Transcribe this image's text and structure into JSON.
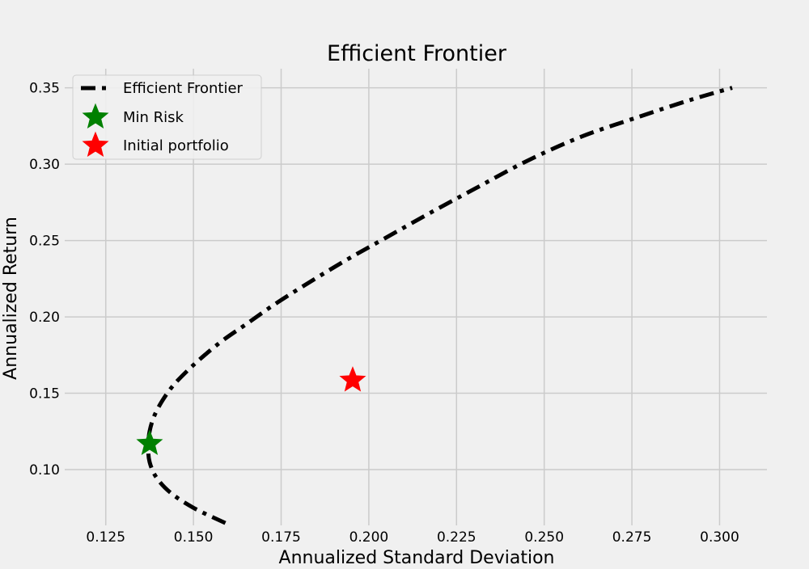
{
  "chart_data": {
    "type": "line",
    "title": "Efficient Frontier",
    "xlabel": "Annualized Standard Deviation",
    "ylabel": "Annualized Return",
    "xlim": [
      0.1133,
      0.3135
    ],
    "ylim": [
      0.0635,
      0.3625
    ],
    "xticks": [
      "0.125",
      "0.150",
      "0.175",
      "0.200",
      "0.225",
      "0.250",
      "0.275",
      "0.300"
    ],
    "yticks": [
      "0.10",
      "0.15",
      "0.20",
      "0.25",
      "0.30",
      "0.35"
    ],
    "grid": true,
    "legend": {
      "placement": "top-left",
      "entries": [
        "Efficient Frontier",
        "Min Risk",
        "Initial portfolio"
      ]
    },
    "series": [
      {
        "name": "Efficient Frontier",
        "kind": "line",
        "style": "dash-dot",
        "color": "#000000",
        "points": [
          {
            "x": 0.1591,
            "y": 0.065
          },
          {
            "x": 0.15,
            "y": 0.075
          },
          {
            "x": 0.1434,
            "y": 0.085
          },
          {
            "x": 0.1394,
            "y": 0.095
          },
          {
            "x": 0.1375,
            "y": 0.105
          },
          {
            "x": 0.1371,
            "y": 0.115
          },
          {
            "x": 0.1375,
            "y": 0.125
          },
          {
            "x": 0.1388,
            "y": 0.135
          },
          {
            "x": 0.1411,
            "y": 0.145
          },
          {
            "x": 0.1442,
            "y": 0.155
          },
          {
            "x": 0.1484,
            "y": 0.165
          },
          {
            "x": 0.1532,
            "y": 0.175
          },
          {
            "x": 0.1586,
            "y": 0.185
          },
          {
            "x": 0.1649,
            "y": 0.195
          },
          {
            "x": 0.173,
            "y": 0.208
          },
          {
            "x": 0.1826,
            "y": 0.222
          },
          {
            "x": 0.1934,
            "y": 0.237
          },
          {
            "x": 0.205,
            "y": 0.252
          },
          {
            "x": 0.2174,
            "y": 0.268
          },
          {
            "x": 0.2303,
            "y": 0.284
          },
          {
            "x": 0.245,
            "y": 0.302
          },
          {
            "x": 0.2606,
            "y": 0.318
          },
          {
            "x": 0.277,
            "y": 0.331
          },
          {
            "x": 0.2916,
            "y": 0.342
          },
          {
            "x": 0.3036,
            "y": 0.35
          }
        ]
      },
      {
        "name": "Min Risk",
        "kind": "marker",
        "marker": "star",
        "color": "#008000",
        "points": [
          {
            "x": 0.1375,
            "y": 0.117
          }
        ]
      },
      {
        "name": "Initial portfolio",
        "kind": "marker",
        "marker": "star",
        "color": "#ff0000",
        "points": [
          {
            "x": 0.1954,
            "y": 0.1585
          }
        ]
      }
    ]
  }
}
